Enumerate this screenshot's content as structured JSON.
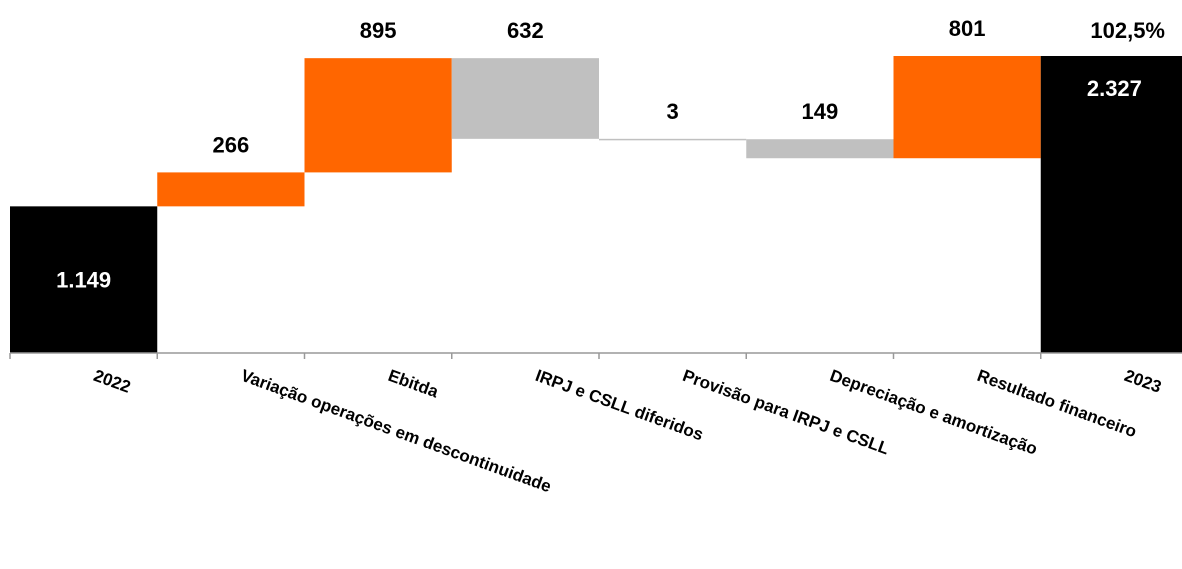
{
  "chart_data": {
    "type": "waterfall",
    "categories": [
      "2022",
      "Variação operações em descontinuidade",
      "Ebitda",
      "IRPJ e CSLL diferidos",
      "Provisão para IRPJ e CSLL",
      "Depreciação e amortização",
      "Resultado financeiro",
      "2023"
    ],
    "values": [
      1149,
      266,
      895,
      -632,
      -3,
      -149,
      801,
      2327
    ],
    "value_labels": [
      "1.149",
      "266",
      "895",
      "632",
      "3",
      "149",
      "801",
      "2.327"
    ],
    "bar_kinds": [
      "total",
      "increase",
      "increase",
      "decrease",
      "decrease",
      "decrease",
      "increase",
      "total"
    ],
    "annotation": "102,5%",
    "ylim": [
      0,
      2550
    ],
    "grid": false,
    "colors": {
      "total": "#000000",
      "increase": "#ff6600",
      "decrease": "#c0c0c0",
      "axis": "#999999"
    }
  }
}
